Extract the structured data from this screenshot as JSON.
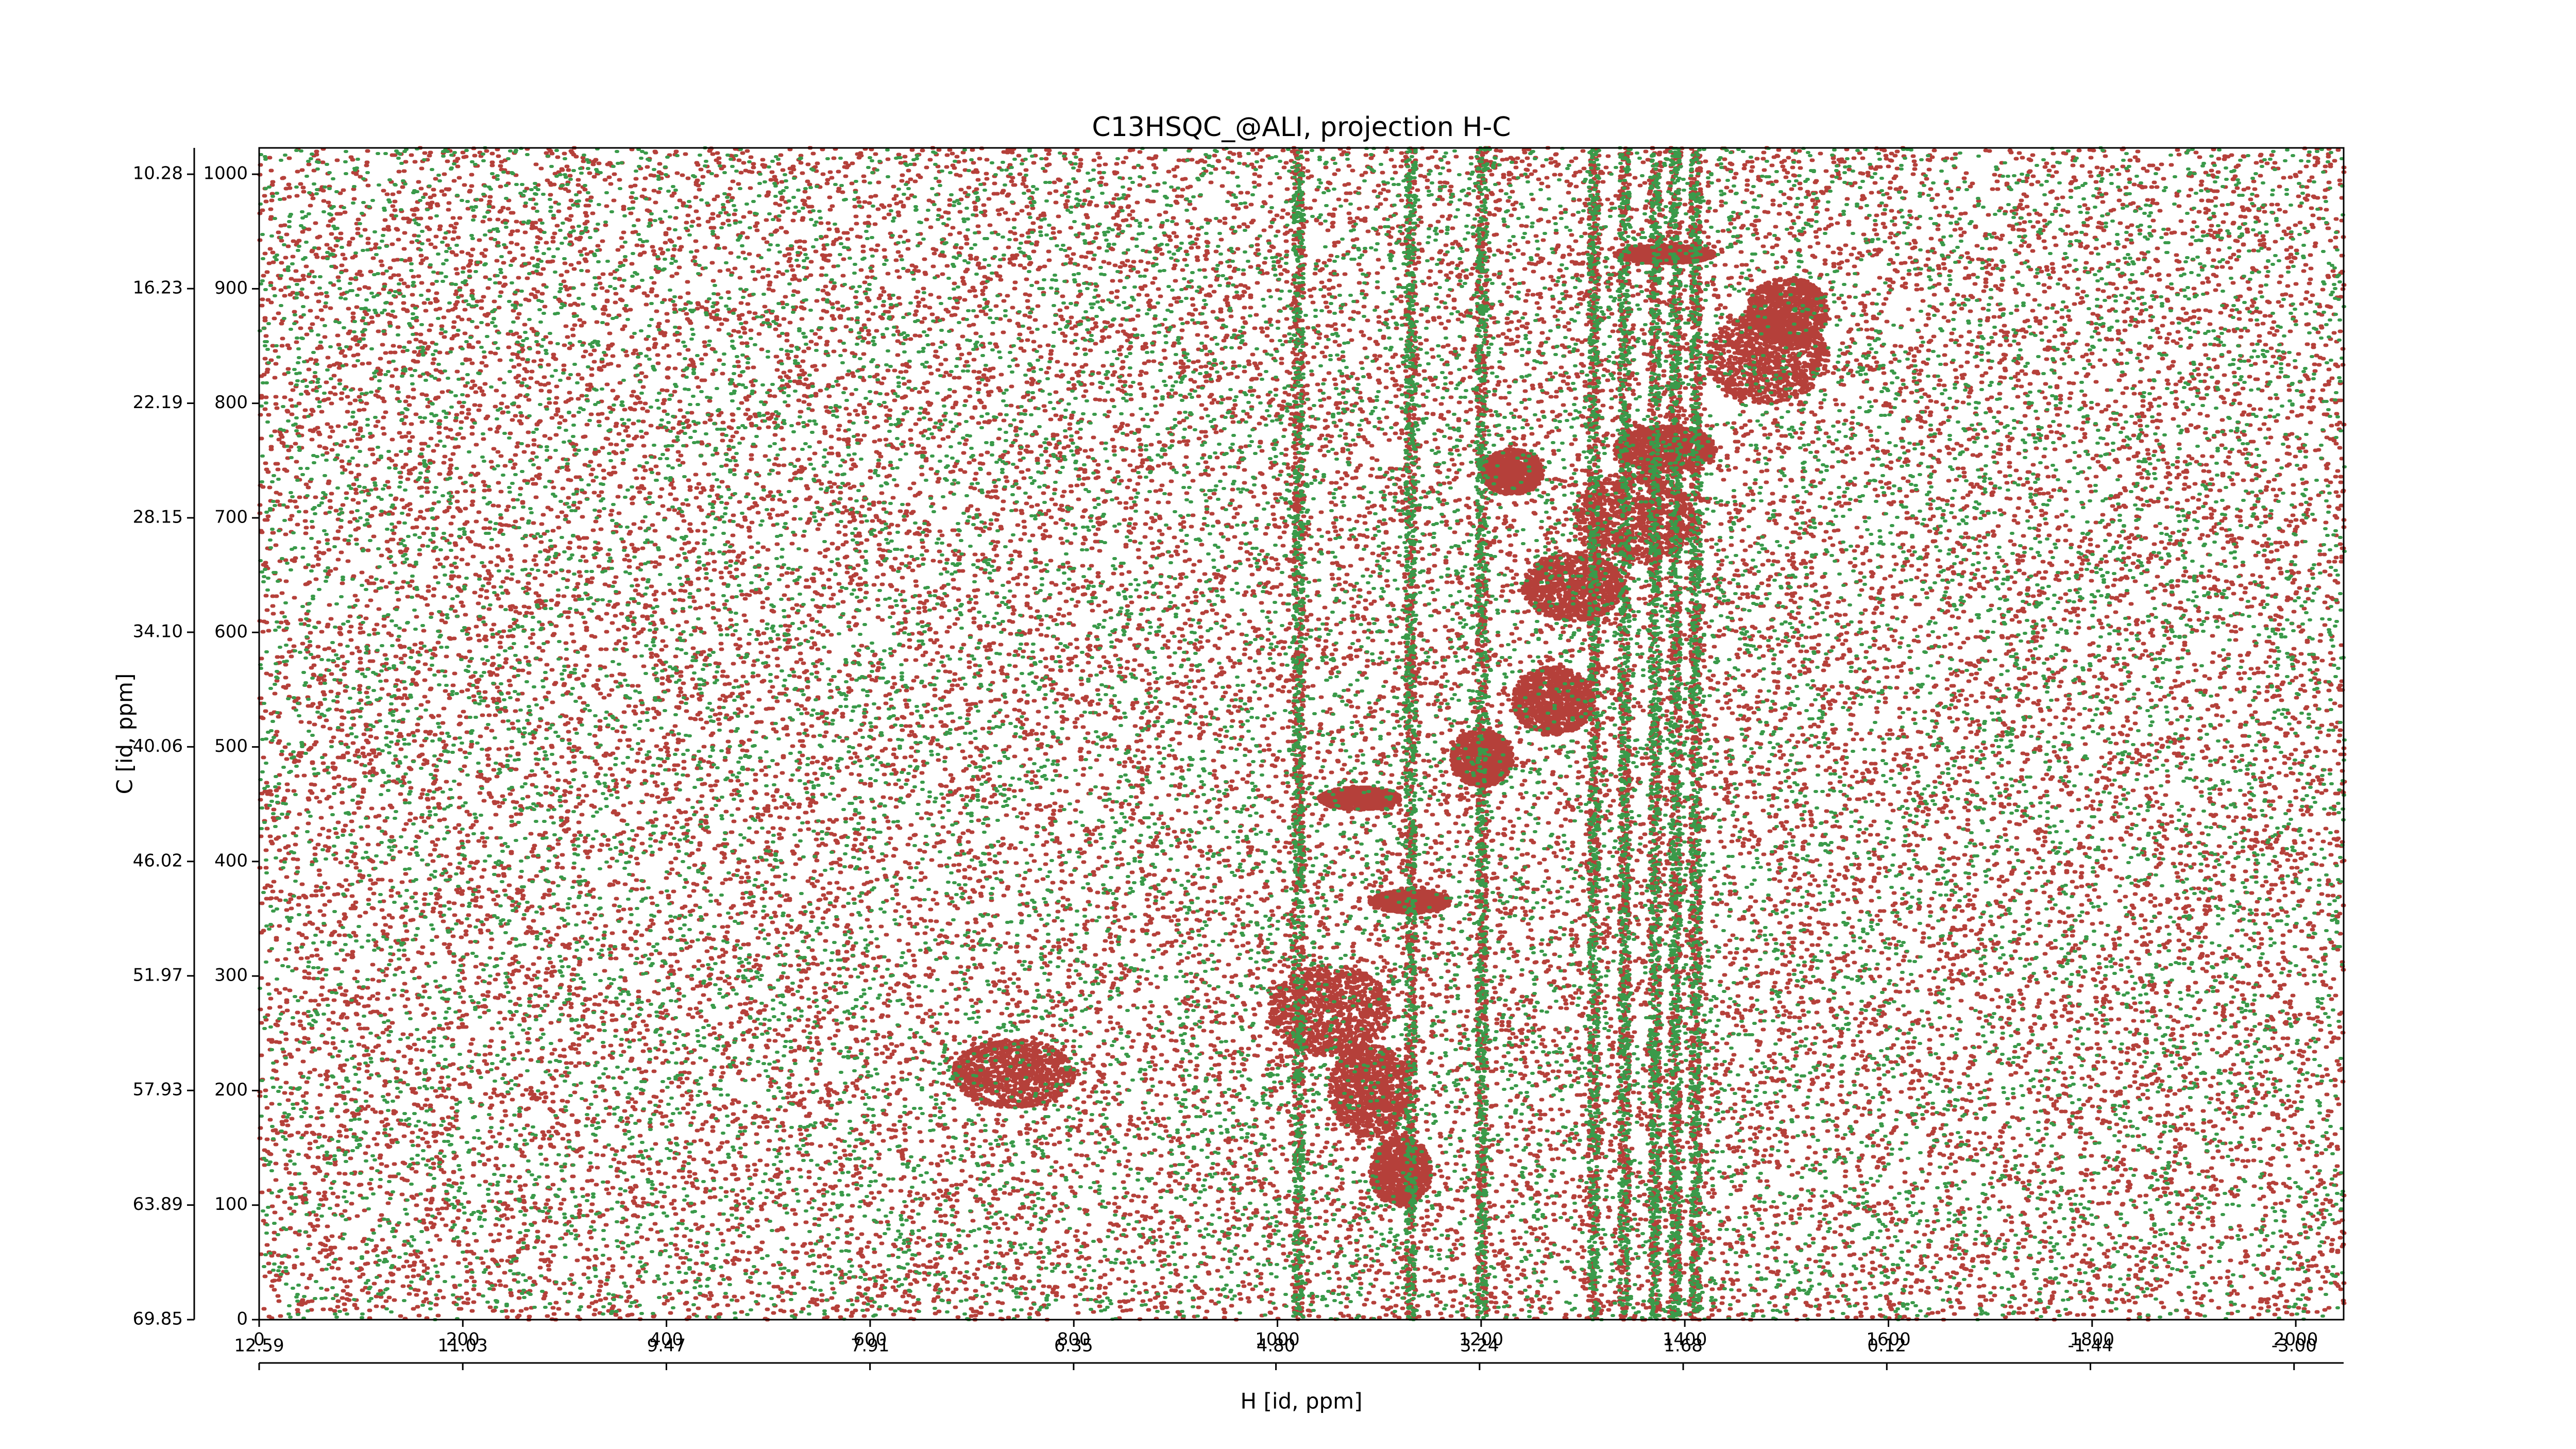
{
  "chart_data": {
    "type": "contour",
    "title": "C13HSQC_@ALI, projection H-C",
    "xlabel": "H [id, ppm]",
    "ylabel": "C [id, ppm]",
    "xlim": [
      0,
      2047
    ],
    "xticks": [
      0,
      200,
      400,
      600,
      800,
      1000,
      1200,
      1400,
      1600,
      1800,
      2000
    ],
    "ylim": [
      0,
      1023
    ],
    "yticks": [
      0,
      100,
      200,
      300,
      400,
      500,
      600,
      700,
      800,
      900,
      1000
    ],
    "x2lim": [
      12.59,
      -3.38
    ],
    "x2ticks": [
      12.59,
      11.03,
      9.47,
      7.91,
      6.35,
      {
        "value": 4.8,
        "label": "4.80"
      },
      3.24,
      1.68,
      0.12,
      -1.44,
      {
        "value": -3,
        "label": "-3.00"
      }
    ],
    "y2lim": [
      69.85,
      8.91
    ],
    "y2ticks": [
      69.85,
      63.89,
      57.93,
      51.97,
      46.02,
      40.06,
      {
        "value": 34.1,
        "label": "34.10"
      },
      28.15,
      22.19,
      16.23,
      10.28
    ],
    "positive_color": "#b5403a",
    "negative_color": "#3a9a4a"
  }
}
